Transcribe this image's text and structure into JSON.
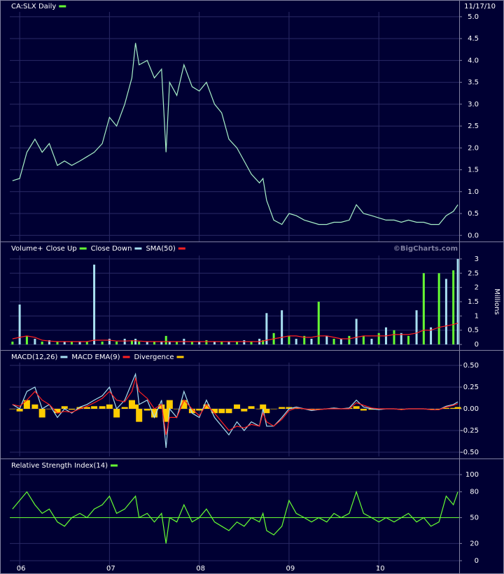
{
  "chart_data": [
    {
      "type": "line",
      "title": "CA:SLX Daily",
      "date": "11/17/10",
      "x": [
        2005.92,
        2006.0,
        2006.08,
        2006.17,
        2006.25,
        2006.33,
        2006.42,
        2006.5,
        2006.58,
        2006.67,
        2006.75,
        2006.83,
        2006.92,
        2007.0,
        2007.08,
        2007.17,
        2007.25,
        2007.29,
        2007.33,
        2007.42,
        2007.5,
        2007.58,
        2007.63,
        2007.67,
        2007.75,
        2007.83,
        2007.92,
        2008.0,
        2008.08,
        2008.17,
        2008.25,
        2008.33,
        2008.42,
        2008.5,
        2008.58,
        2008.67,
        2008.71,
        2008.75,
        2008.83,
        2008.92,
        2009.0,
        2009.08,
        2009.17,
        2009.25,
        2009.33,
        2009.42,
        2009.5,
        2009.58,
        2009.67,
        2009.75,
        2009.83,
        2009.92,
        2010.0,
        2010.08,
        2010.17,
        2010.25,
        2010.33,
        2010.42,
        2010.5,
        2010.58,
        2010.67,
        2010.75,
        2010.83,
        2010.88
      ],
      "series": [
        {
          "color": "#a8f0c8",
          "values": [
            1.25,
            1.3,
            1.9,
            2.2,
            1.9,
            2.1,
            1.6,
            1.7,
            1.6,
            1.7,
            1.8,
            1.9,
            2.1,
            2.7,
            2.5,
            3.0,
            3.6,
            4.4,
            3.9,
            4.0,
            3.6,
            3.8,
            1.9,
            3.5,
            3.2,
            3.9,
            3.4,
            3.3,
            3.5,
            3.0,
            2.8,
            2.2,
            2.0,
            1.7,
            1.4,
            1.2,
            1.3,
            0.8,
            0.35,
            0.25,
            0.5,
            0.45,
            0.35,
            0.3,
            0.25,
            0.25,
            0.3,
            0.3,
            0.35,
            0.7,
            0.5,
            0.45,
            0.4,
            0.35,
            0.35,
            0.3,
            0.35,
            0.3,
            0.3,
            0.25,
            0.25,
            0.45,
            0.55,
            0.7
          ]
        }
      ],
      "legend_color": "#66ff33",
      "xlim": [
        2005.89,
        2010.895
      ],
      "ylim": [
        -0.14,
        5.11
      ],
      "yticks": [
        {
          "value": 0,
          "label": "0.0"
        },
        {
          "value": 0.5,
          "label": "0.5"
        },
        {
          "value": 1,
          "label": "1.0"
        },
        {
          "value": 1.5,
          "label": "1.5"
        },
        {
          "value": 2,
          "label": "2.0"
        },
        {
          "value": 2.5,
          "label": "2.5"
        },
        {
          "value": 3,
          "label": "3.0"
        },
        {
          "value": 3.5,
          "label": "3.5"
        },
        {
          "value": 4,
          "label": "4.0"
        },
        {
          "value": 4.5,
          "label": "4.5"
        },
        {
          "value": 5,
          "label": "5.0"
        }
      ],
      "grid": true
    },
    {
      "type": "bar",
      "title": "Volume+",
      "watermark": "©BigCharts.com",
      "y_label": "Millions",
      "x": [
        2005.92,
        2006.0,
        2006.08,
        2006.17,
        2006.25,
        2006.33,
        2006.42,
        2006.5,
        2006.58,
        2006.67,
        2006.75,
        2006.83,
        2006.92,
        2007.0,
        2007.08,
        2007.17,
        2007.25,
        2007.29,
        2007.33,
        2007.42,
        2007.5,
        2007.58,
        2007.63,
        2007.67,
        2007.75,
        2007.83,
        2007.92,
        2008.0,
        2008.08,
        2008.17,
        2008.25,
        2008.33,
        2008.42,
        2008.5,
        2008.58,
        2008.67,
        2008.71,
        2008.75,
        2008.83,
        2008.92,
        2009.0,
        2009.08,
        2009.17,
        2009.25,
        2009.33,
        2009.42,
        2009.5,
        2009.58,
        2009.67,
        2009.75,
        2009.83,
        2009.92,
        2010.0,
        2010.08,
        2010.17,
        2010.25,
        2010.33,
        2010.42,
        2010.5,
        2010.58,
        2010.67,
        2010.75,
        2010.83,
        2010.88
      ],
      "series": [
        {
          "name": "Close Up",
          "color": "#66ff33",
          "values": [
            0.1,
            null,
            0.3,
            null,
            0.1,
            null,
            0.1,
            null,
            0.1,
            null,
            0.1,
            null,
            0.1,
            null,
            0.1,
            null,
            0.15,
            null,
            0.1,
            null,
            0.1,
            null,
            0.3,
            null,
            0.1,
            null,
            0.1,
            null,
            0.15,
            null,
            0.1,
            null,
            0.1,
            null,
            0.1,
            null,
            0.15,
            null,
            0.4,
            null,
            0.3,
            null,
            0.3,
            null,
            1.5,
            null,
            0.2,
            null,
            0.3,
            null,
            0.3,
            null,
            0.4,
            null,
            0.5,
            null,
            0.3,
            null,
            2.5,
            null,
            2.5,
            null,
            2.6,
            null
          ]
        },
        {
          "name": "Close Down",
          "color": "#a8e0f0",
          "values": [
            null,
            1.4,
            null,
            0.2,
            null,
            0.15,
            null,
            0.1,
            null,
            0.1,
            null,
            2.8,
            null,
            0.2,
            null,
            0.2,
            null,
            0.2,
            null,
            0.1,
            null,
            0.1,
            null,
            0.1,
            null,
            0.2,
            null,
            0.1,
            null,
            0.1,
            null,
            0.1,
            null,
            0.15,
            null,
            0.2,
            null,
            1.1,
            null,
            1.2,
            null,
            0.2,
            null,
            0.2,
            null,
            0.3,
            null,
            0.2,
            null,
            0.9,
            null,
            0.2,
            null,
            0.6,
            null,
            0.4,
            null,
            1.2,
            null,
            0.6,
            null,
            2.3,
            null,
            3.0
          ]
        },
        {
          "name": "SMA(50)",
          "color": "#ff2020",
          "kind": "line",
          "values": [
            0.2,
            0.25,
            0.3,
            0.25,
            0.15,
            0.12,
            0.1,
            0.1,
            0.1,
            0.1,
            0.1,
            0.15,
            0.15,
            0.15,
            0.12,
            0.12,
            0.13,
            0.13,
            0.12,
            0.1,
            0.1,
            0.1,
            0.1,
            0.1,
            0.1,
            0.1,
            0.1,
            0.1,
            0.1,
            0.1,
            0.1,
            0.1,
            0.1,
            0.1,
            0.1,
            0.1,
            0.12,
            0.15,
            0.2,
            0.25,
            0.3,
            0.3,
            0.25,
            0.25,
            0.3,
            0.3,
            0.25,
            0.2,
            0.2,
            0.25,
            0.3,
            0.3,
            0.3,
            0.3,
            0.35,
            0.35,
            0.35,
            0.4,
            0.5,
            0.5,
            0.6,
            0.65,
            0.7,
            0.75
          ]
        }
      ],
      "xlim": [
        2005.89,
        2010.895
      ],
      "ylim": [
        -0.12,
        3.12
      ],
      "yticks": [
        0,
        0.5,
        1,
        1.5,
        2,
        2.5,
        3
      ],
      "grid": true
    },
    {
      "type": "line",
      "x": [
        2005.92,
        2006.0,
        2006.08,
        2006.17,
        2006.25,
        2006.33,
        2006.42,
        2006.5,
        2006.58,
        2006.67,
        2006.75,
        2006.83,
        2006.92,
        2007.0,
        2007.08,
        2007.17,
        2007.25,
        2007.29,
        2007.33,
        2007.42,
        2007.5,
        2007.58,
        2007.63,
        2007.67,
        2007.75,
        2007.83,
        2007.92,
        2008.0,
        2008.08,
        2008.17,
        2008.25,
        2008.33,
        2008.42,
        2008.5,
        2008.58,
        2008.67,
        2008.71,
        2008.75,
        2008.83,
        2008.92,
        2009.0,
        2009.08,
        2009.17,
        2009.25,
        2009.33,
        2009.42,
        2009.5,
        2009.58,
        2009.67,
        2009.75,
        2009.83,
        2009.92,
        2010.0,
        2010.08,
        2010.17,
        2010.25,
        2010.33,
        2010.42,
        2010.5,
        2010.58,
        2010.67,
        2010.75,
        2010.83,
        2010.88
      ],
      "series": [
        {
          "name": "Divergence",
          "color": "#ffcc00",
          "kind": "bar",
          "values": [
            0,
            -0.03,
            0.1,
            0.05,
            -0.1,
            0,
            -0.05,
            0.03,
            -0.01,
            0.02,
            0.02,
            0.03,
            0.03,
            0.05,
            -0.1,
            0.02,
            0.1,
            0.05,
            -0.15,
            -0.02,
            -0.1,
            0.05,
            -0.15,
            0.1,
            0,
            0.1,
            -0.05,
            -0.02,
            0.05,
            -0.05,
            -0.05,
            -0.05,
            0.05,
            -0.03,
            0.03,
            0,
            0.05,
            -0.05,
            0,
            0.02,
            0.02,
            0.01,
            0,
            -0.01,
            0,
            0,
            0.01,
            0,
            0.01,
            0.03,
            -0.02,
            -0.01,
            -0.01,
            0,
            0,
            0,
            0,
            0,
            0,
            0,
            0,
            0.01,
            0.01,
            0.02
          ]
        },
        {
          "name": "MACD(12,26)",
          "color": "#a8e0f0",
          "values": [
            0.05,
            0.0,
            0.2,
            0.25,
            0.0,
            0.05,
            -0.1,
            0.0,
            -0.05,
            0.02,
            0.05,
            0.1,
            0.15,
            0.25,
            0.0,
            0.1,
            0.3,
            0.4,
            0.05,
            0.1,
            -0.1,
            0.1,
            -0.45,
            0.0,
            -0.1,
            0.2,
            -0.05,
            -0.1,
            0.1,
            -0.1,
            -0.2,
            -0.3,
            -0.15,
            -0.25,
            -0.15,
            -0.2,
            0.0,
            -0.2,
            -0.2,
            -0.1,
            0.0,
            0.02,
            0.0,
            -0.02,
            -0.01,
            0.0,
            0.01,
            0.0,
            0.01,
            0.1,
            0.02,
            0.0,
            -0.01,
            0.0,
            0.0,
            -0.01,
            0.0,
            0.0,
            0.0,
            -0.01,
            -0.01,
            0.03,
            0.05,
            0.08
          ]
        },
        {
          "name": "MACD EMA(9)",
          "color": "#ff2020",
          "values": [
            0.05,
            0.03,
            0.1,
            0.2,
            0.1,
            0.05,
            -0.05,
            -0.03,
            -0.04,
            0.0,
            0.03,
            0.07,
            0.12,
            0.2,
            0.1,
            0.08,
            0.2,
            0.35,
            0.2,
            0.12,
            0.0,
            0.05,
            -0.3,
            -0.1,
            -0.1,
            0.1,
            0.0,
            -0.08,
            0.05,
            -0.05,
            -0.15,
            -0.25,
            -0.2,
            -0.22,
            -0.18,
            -0.2,
            -0.05,
            -0.15,
            -0.2,
            -0.12,
            -0.02,
            0.01,
            0.0,
            -0.01,
            -0.01,
            0.0,
            0.0,
            0.0,
            0.0,
            0.07,
            0.04,
            0.01,
            0.0,
            0.0,
            0.0,
            -0.01,
            0.0,
            0.0,
            0.0,
            -0.01,
            -0.01,
            0.02,
            0.04,
            0.06
          ]
        }
      ],
      "legend_order": [
        1,
        2,
        0
      ],
      "xlim": [
        2005.89,
        2010.895
      ],
      "ylim": [
        -0.548,
        0.532
      ],
      "yticks": [
        {
          "value": -0.5,
          "label": "-0.50"
        },
        {
          "value": -0.25,
          "label": "-0.25"
        },
        {
          "value": 0,
          "label": "0.00"
        },
        {
          "value": 0.25,
          "label": "0.25"
        },
        {
          "value": 0.5,
          "label": "0.50"
        }
      ],
      "grid": true
    },
    {
      "type": "line",
      "title": "Relative Strength Index(14)",
      "x": [
        2005.92,
        2006.0,
        2006.08,
        2006.17,
        2006.25,
        2006.33,
        2006.42,
        2006.5,
        2006.58,
        2006.67,
        2006.75,
        2006.83,
        2006.92,
        2007.0,
        2007.08,
        2007.17,
        2007.25,
        2007.29,
        2007.33,
        2007.42,
        2007.5,
        2007.58,
        2007.63,
        2007.67,
        2007.75,
        2007.83,
        2007.92,
        2008.0,
        2008.08,
        2008.17,
        2008.25,
        2008.33,
        2008.42,
        2008.5,
        2008.58,
        2008.67,
        2008.71,
        2008.75,
        2008.83,
        2008.92,
        2009.0,
        2009.08,
        2009.17,
        2009.25,
        2009.33,
        2009.42,
        2009.5,
        2009.58,
        2009.67,
        2009.75,
        2009.83,
        2009.92,
        2010.0,
        2010.08,
        2010.17,
        2010.25,
        2010.33,
        2010.42,
        2010.5,
        2010.58,
        2010.67,
        2010.75,
        2010.83,
        2010.88
      ],
      "series": [
        {
          "color": "#66ff33",
          "values": [
            60,
            70,
            80,
            65,
            55,
            60,
            45,
            40,
            50,
            55,
            50,
            60,
            65,
            75,
            55,
            60,
            70,
            75,
            50,
            55,
            45,
            55,
            20,
            50,
            45,
            65,
            45,
            50,
            60,
            45,
            40,
            35,
            45,
            40,
            50,
            45,
            55,
            35,
            30,
            40,
            70,
            55,
            50,
            45,
            50,
            45,
            55,
            50,
            55,
            80,
            55,
            50,
            45,
            50,
            45,
            50,
            55,
            45,
            50,
            40,
            45,
            75,
            65,
            80
          ]
        }
      ],
      "legend_color": "#66ff33",
      "hline": 50,
      "xlim": [
        2005.89,
        2010.895
      ],
      "ylim": [
        -5.7,
        104.9
      ],
      "yticks": [
        0,
        20,
        50,
        80,
        100
      ],
      "xticks": [
        {
          "value": 2006,
          "label": "06"
        },
        {
          "value": 2007,
          "label": "07"
        },
        {
          "value": 2008,
          "label": "08"
        },
        {
          "value": 2009,
          "label": "09"
        },
        {
          "value": 2010,
          "label": "10"
        }
      ],
      "grid": true
    }
  ]
}
